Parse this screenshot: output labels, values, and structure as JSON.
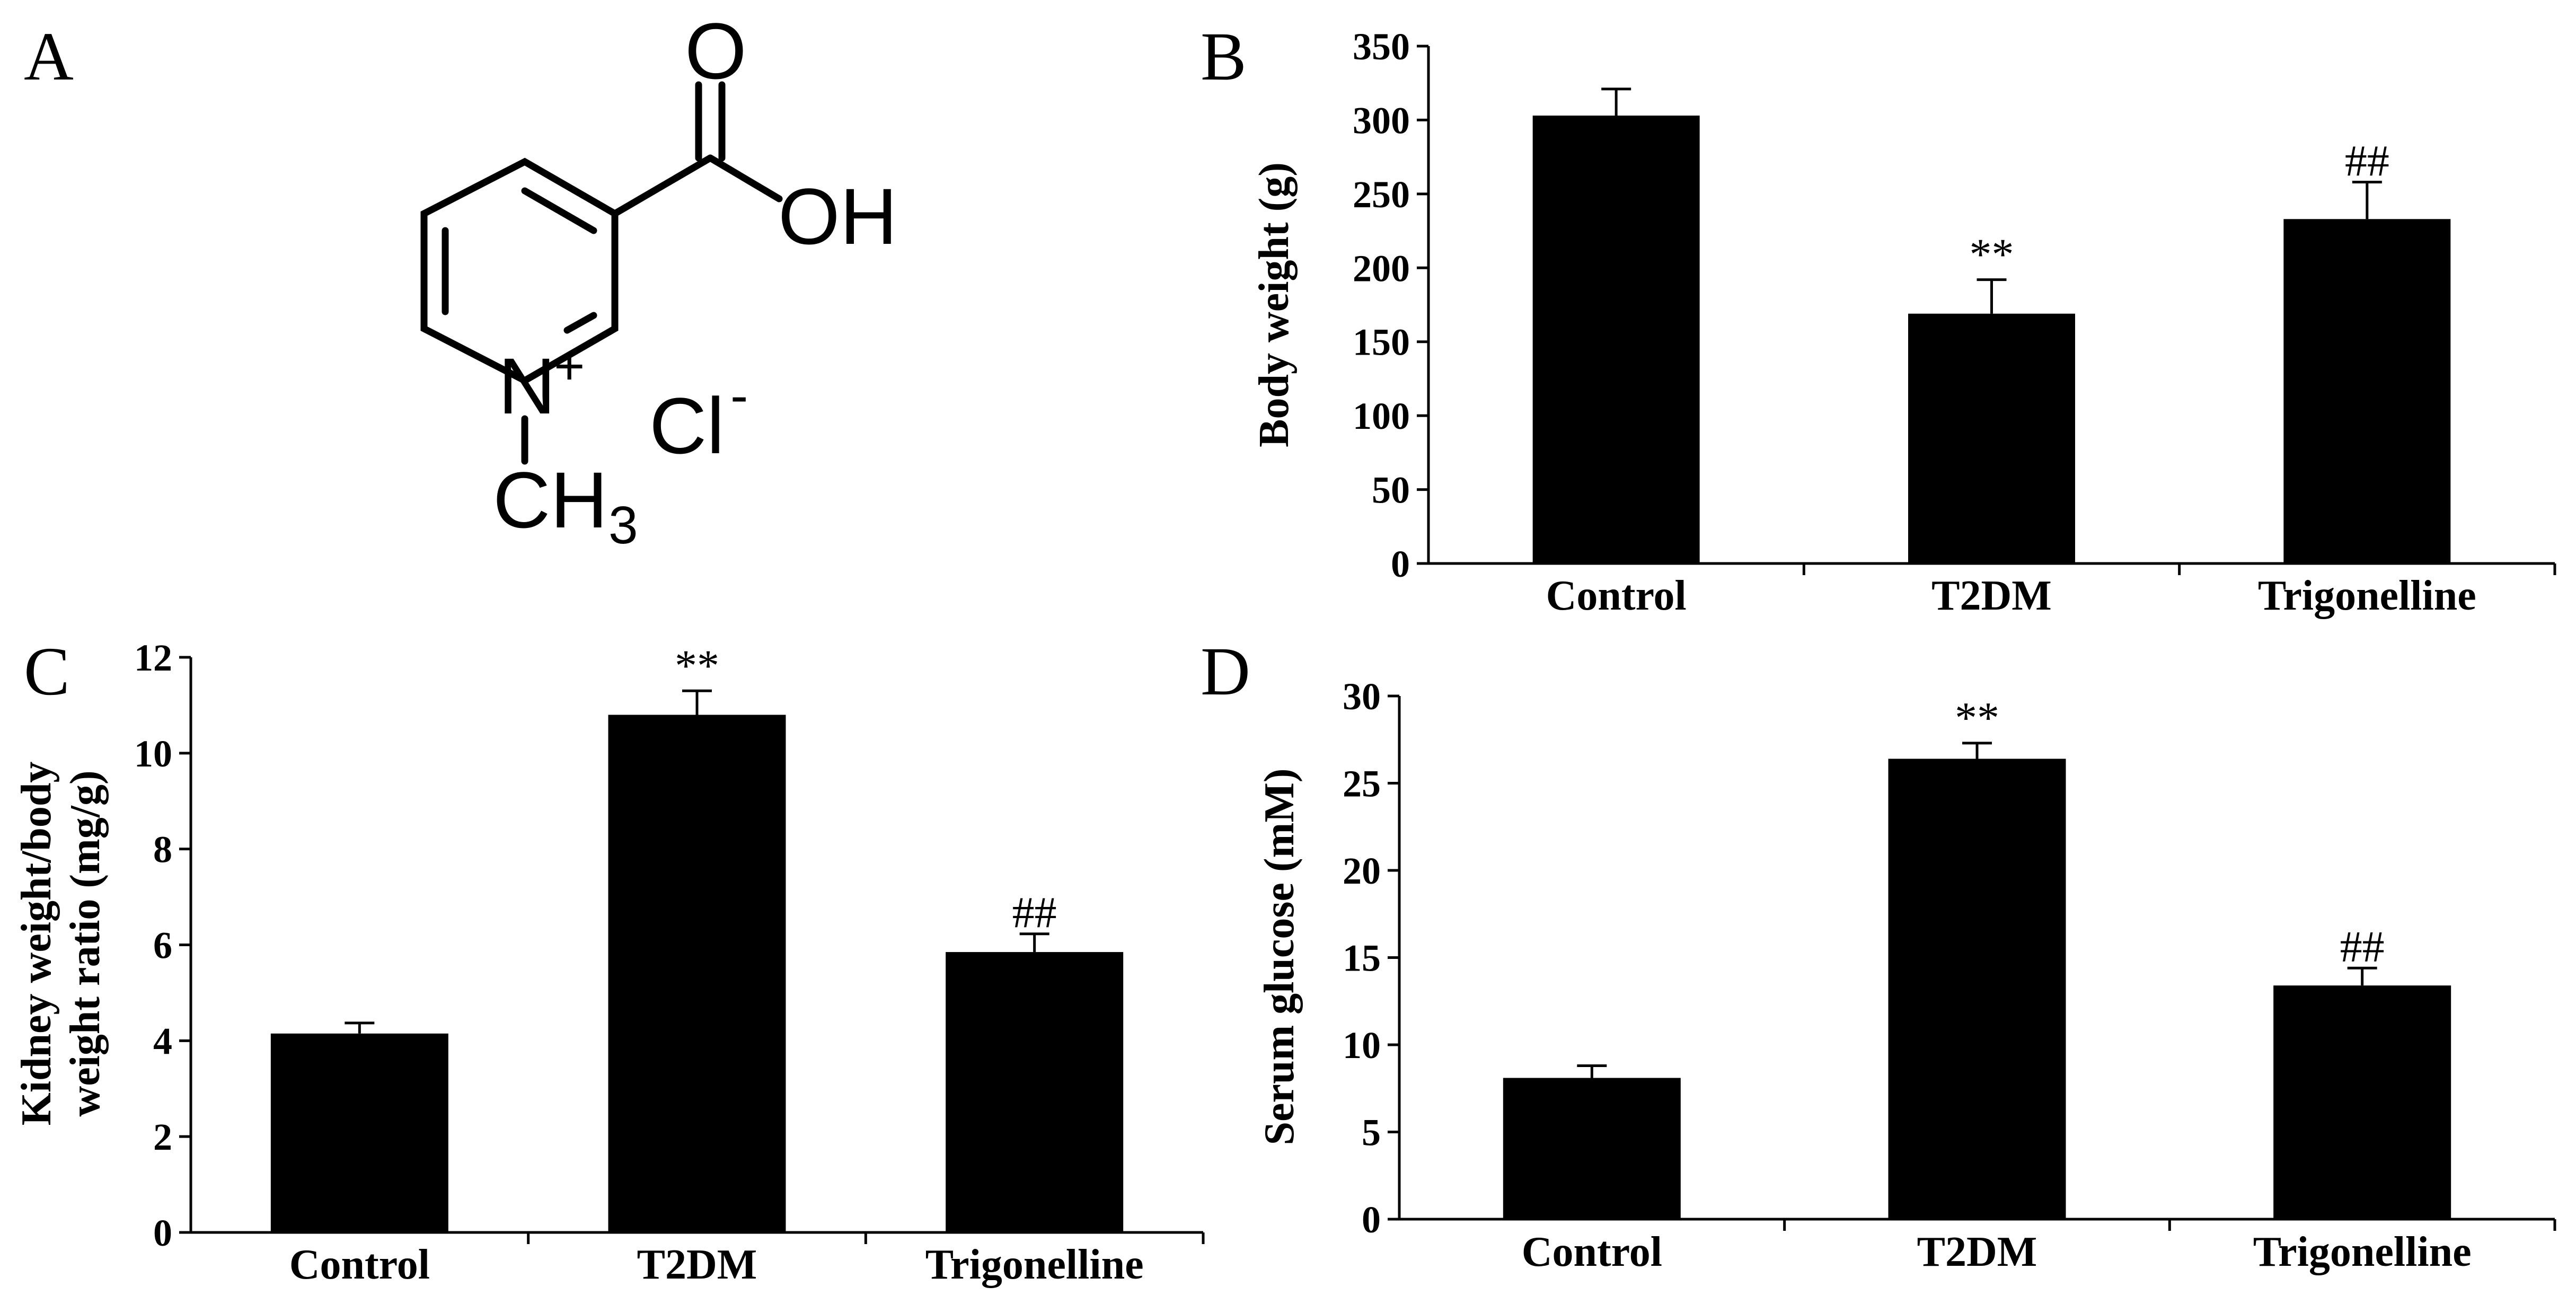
{
  "panel_letters": {
    "a": "A",
    "b": "B",
    "c": "C",
    "d": "D"
  },
  "molecule": {
    "atoms": {
      "carbonyl_o": "O",
      "hydroxyl": "OH",
      "nitrogen": "N",
      "charge": "+",
      "methyl_c": "CH",
      "methyl_sub": "3",
      "chloride": "Cl",
      "chloride_charge": "-"
    }
  },
  "colors": {
    "bar": "#000000",
    "axis": "#000000",
    "background": "#ffffff"
  },
  "chart_data": [
    {
      "panel": "B",
      "type": "bar",
      "categories": [
        "Control",
        "T2DM",
        "Trigonelline"
      ],
      "values": [
        303,
        169,
        233
      ],
      "errors": [
        18,
        23,
        25
      ],
      "annotations": [
        "",
        "**",
        "##"
      ],
      "xlabel": "",
      "ylabel": "Body weight (g)",
      "ylim": [
        0,
        350
      ],
      "yticks": [
        0,
        50,
        100,
        150,
        200,
        250,
        300,
        350
      ],
      "grid": false
    },
    {
      "panel": "C",
      "type": "bar",
      "categories": [
        "Control",
        "T2DM",
        "Trigonelline"
      ],
      "values": [
        4.15,
        10.8,
        5.85
      ],
      "errors": [
        0.22,
        0.5,
        0.38
      ],
      "annotations": [
        "",
        "**",
        "##"
      ],
      "xlabel": "",
      "ylabel_lines": [
        "Kidney weight/body",
        "weight ratio (mg/g)"
      ],
      "ylim": [
        0,
        12
      ],
      "yticks": [
        0,
        2,
        4,
        6,
        8,
        10,
        12
      ],
      "grid": false
    },
    {
      "panel": "D",
      "type": "bar",
      "categories": [
        "Control",
        "T2DM",
        "Trigonelline"
      ],
      "values": [
        8.1,
        26.4,
        13.4
      ],
      "errors": [
        0.7,
        0.9,
        1.0
      ],
      "annotations": [
        "",
        "**",
        "##"
      ],
      "xlabel": "",
      "ylabel": "Serum glucose (mM)",
      "ylim": [
        0,
        30
      ],
      "yticks": [
        0,
        5,
        10,
        15,
        20,
        25,
        30
      ],
      "grid": false
    }
  ]
}
